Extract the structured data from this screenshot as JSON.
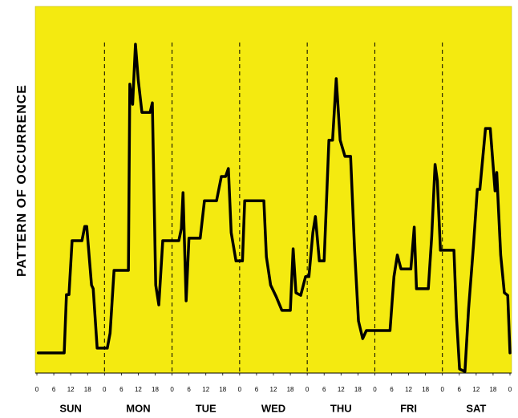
{
  "chart_data": {
    "type": "line",
    "y_label": "PATTERN OF OCCURRENCE",
    "day_labels": [
      "SUN",
      "MON",
      "TUE",
      "WED",
      "THU",
      "FRI",
      "SAT"
    ],
    "background": "#f4ea10",
    "color": "#000000",
    "xlim": [
      0,
      168
    ],
    "ylim": [
      0,
      100
    ],
    "xticks": [
      0,
      6,
      12,
      18,
      {
        "value": 24,
        "label": "0"
      },
      {
        "value": 30,
        "label": "6"
      },
      {
        "value": 36,
        "label": "12"
      },
      {
        "value": 42,
        "label": "18"
      },
      {
        "value": 48,
        "label": "0"
      },
      {
        "value": 54,
        "label": "6"
      },
      {
        "value": 60,
        "label": "12"
      },
      {
        "value": 66,
        "label": "18"
      },
      {
        "value": 72,
        "label": "0"
      },
      {
        "value": 78,
        "label": "6"
      },
      {
        "value": 84,
        "label": "12"
      },
      {
        "value": 90,
        "label": "18"
      },
      {
        "value": 96,
        "label": "0"
      },
      {
        "value": 102,
        "label": "6"
      },
      {
        "value": 108,
        "label": "12"
      },
      {
        "value": 114,
        "label": "18"
      },
      {
        "value": 120,
        "label": "0"
      },
      {
        "value": 126,
        "label": "6"
      },
      {
        "value": 132,
        "label": "12"
      },
      {
        "value": 138,
        "label": "18"
      },
      {
        "value": 144,
        "label": "0"
      },
      {
        "value": 150,
        "label": "6"
      },
      {
        "value": 156,
        "label": "12"
      },
      {
        "value": 162,
        "label": "18"
      },
      {
        "value": 168,
        "label": "0"
      }
    ],
    "day_dividers": [
      24,
      48,
      72,
      96,
      120,
      144
    ],
    "x": [
      0.5,
      9.7,
      10.5,
      11.4,
      12.5,
      16,
      17,
      17.7,
      19.4,
      20,
      21.4,
      25,
      26,
      27.4,
      32.5,
      33,
      34,
      35,
      36,
      37.3,
      40.2,
      41,
      42.2,
      43.3,
      44.7,
      50.4,
      51.3,
      51.9,
      53,
      54,
      58,
      59.5,
      63.8,
      65.5,
      67,
      68,
      69,
      70.7,
      73,
      73.8,
      80.6,
      81.5,
      83,
      85,
      87,
      90,
      91,
      92,
      93.7,
      95.4,
      96.6,
      98,
      98.9,
      100.3,
      102,
      103.7,
      105,
      106.3,
      107.7,
      109.4,
      111.4,
      112.8,
      114.2,
      115.7,
      117,
      125.4,
      126.8,
      128,
      129.3,
      132.8,
      134,
      134.8,
      139,
      140.2,
      141.4,
      142.2,
      143.3,
      148.1,
      149,
      150.1,
      152,
      153.3,
      155,
      156.4,
      157.3,
      159.3,
      161,
      162.7,
      163.3,
      164.7,
      166,
      167.2,
      168
    ],
    "values": [
      5.5,
      5.5,
      21.4,
      21.4,
      36.1,
      36.1,
      40,
      40,
      24,
      23,
      6.8,
      6.8,
      10.9,
      28,
      28,
      78.8,
      73.3,
      89.7,
      79.9,
      71.1,
      71.1,
      73.7,
      24,
      18.6,
      36.1,
      36.1,
      39.4,
      49.2,
      19.7,
      36.8,
      36.8,
      47,
      47,
      53.6,
      53.6,
      55.8,
      38.3,
      30.6,
      30.6,
      47,
      47,
      31.7,
      24,
      20.8,
      17.1,
      17.1,
      33.9,
      21.9,
      21.2,
      26.3,
      26.3,
      38.3,
      42.7,
      30.6,
      30.6,
      63.5,
      63.5,
      80.3,
      63.5,
      59.1,
      59.1,
      33.9,
      14.2,
      9.4,
      11.6,
      11.6,
      26.3,
      32.2,
      28.4,
      28.4,
      39.8,
      23,
      23,
      37.2,
      56.9,
      52.5,
      33.5,
      33.5,
      15.3,
      1.1,
      0.4,
      17.5,
      34.4,
      50.1,
      50.1,
      66.7,
      66.7,
      49.7,
      54.7,
      32.2,
      21.9,
      21.2,
      5.5
    ]
  }
}
